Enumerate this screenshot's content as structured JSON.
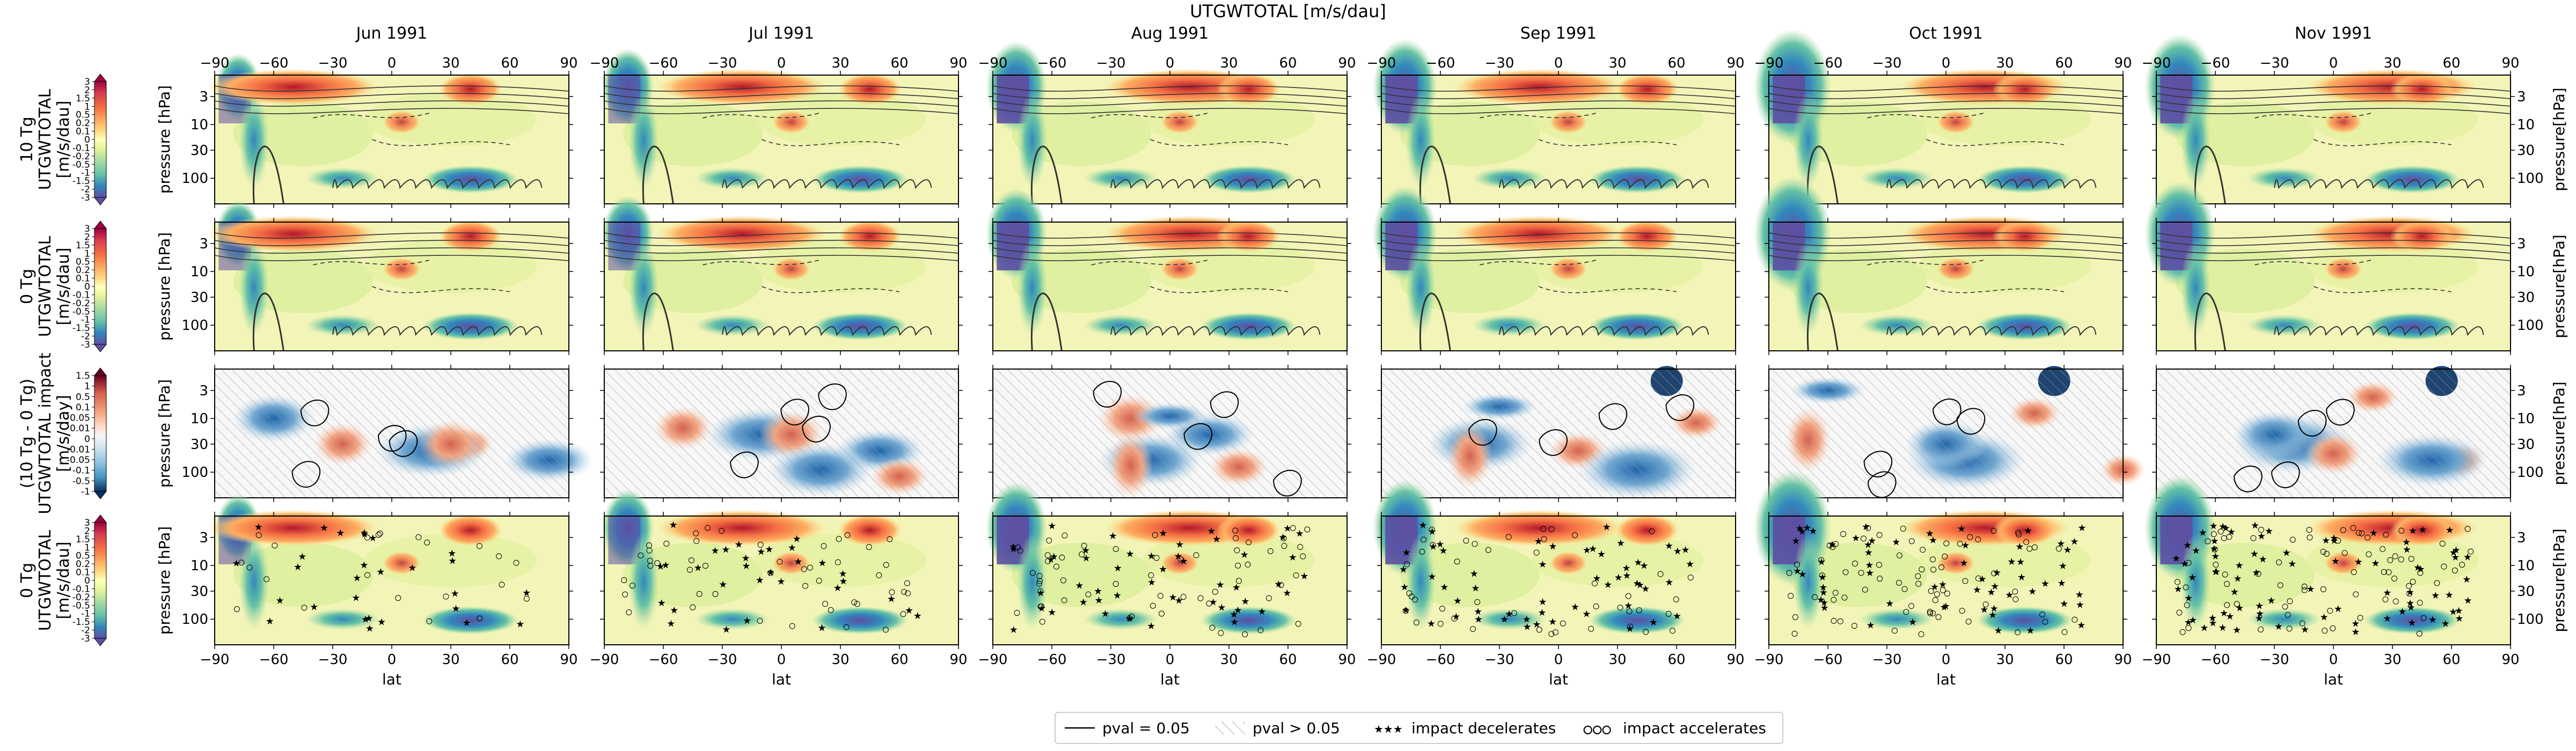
{
  "figure_title": "UTGWTOTAL [m/s/dau]",
  "months": [
    "Jun 1991",
    "Jul 1991",
    "Aug 1991",
    "Sep 1991",
    "Oct 1991",
    "Nov 1991"
  ],
  "rows": [
    {
      "name": "10tg",
      "label_lines": [
        "10 Tg",
        "UTGWTOTAL",
        "[m/s/dau]"
      ],
      "colorbar_ticks": [
        "3",
        "2",
        "1.5",
        "1",
        "0.5",
        "0.2",
        "0.1",
        "0",
        "-0.1",
        "-0.2",
        "-0.5",
        "-1",
        "-1.5",
        "-2",
        "-3"
      ]
    },
    {
      "name": "0tg",
      "label_lines": [
        "0 Tg",
        "UTGWTOTAL",
        "[m/s/dau]"
      ],
      "colorbar_ticks": [
        "3",
        "2",
        "1.5",
        "1",
        "0.5",
        "0.2",
        "0.1",
        "0",
        "-0.1",
        "-0.2",
        "-0.5",
        "-1",
        "-1.5",
        "-2",
        "-3"
      ]
    },
    {
      "name": "impact",
      "label_lines": [
        "(10 Tg - 0 Tg)",
        "UTGWTOTAL impact",
        "[m/s/day]"
      ],
      "colorbar_ticks": [
        "1.5",
        "1",
        "0.5",
        "0.1",
        "0.05",
        "0.01",
        "0",
        "-0.01",
        "-0.05",
        "-0.1",
        "-0.5",
        "-1"
      ]
    },
    {
      "name": "0tg-stipple",
      "label_lines": [
        "0 Tg",
        "UTGWTOTAL",
        "[m/s/dau]"
      ],
      "colorbar_ticks": [
        "3",
        "2",
        "1.5",
        "1",
        "0.5",
        "0.2",
        "0.1",
        "0",
        "-0.1",
        "-0.2",
        "-0.5",
        "-1",
        "-1.5",
        "-2",
        "-3"
      ]
    }
  ],
  "axes": {
    "x_ticks": [
      "−90",
      "−60",
      "−30",
      "0",
      "30",
      "60",
      "90"
    ],
    "x_values": [
      -90,
      -60,
      -30,
      0,
      30,
      60,
      90
    ],
    "y_ticks": [
      "3",
      "10",
      "30",
      "100"
    ],
    "y_values": [
      3,
      10,
      30,
      100
    ],
    "xlabel": "lat",
    "ylabel_left": "pressure [hPa]",
    "ylabel_right": "pressure[hPa]"
  },
  "legend": {
    "items": [
      "pval = 0.05",
      "pval > 0.05",
      "impact decelerates",
      "impact accelerates"
    ]
  },
  "chart_data": {
    "type": "heatmap",
    "title": "UTGWTOTAL [m/s/dau]",
    "xlabel": "lat",
    "ylabel": "pressure [hPa]",
    "xlim": [
      -90,
      90
    ],
    "ylim": [
      1,
      300
    ],
    "y_scale": "log",
    "y_inverted": true,
    "panels_per_row": 6,
    "columns": [
      "Jun 1991",
      "Jul 1991",
      "Aug 1991",
      "Sep 1991",
      "Oct 1991",
      "Nov 1991"
    ],
    "rows": [
      "10 Tg UTGWTOTAL",
      "0 Tg UTGWTOTAL",
      "(10 Tg - 0 Tg) UTGWTOTAL impact",
      "0 Tg UTGWTOTAL"
    ],
    "colorbar_levels_main": [
      -3,
      -2,
      -1.5,
      -1,
      -0.5,
      -0.2,
      -0.1,
      0,
      0.1,
      0.2,
      0.5,
      1,
      1.5,
      2,
      3
    ],
    "colorbar_levels_impact": [
      -1,
      -0.5,
      -0.1,
      -0.05,
      -0.01,
      0,
      0.01,
      0.05,
      0.1,
      0.5,
      1,
      1.5
    ],
    "features": [
      {
        "row": "all",
        "feature": "strong negative drag near 75S at 1–5 hPa",
        "lat": -75,
        "pressure": 3,
        "value": -3
      },
      {
        "row": "all",
        "feature": "negative drag near 40N at ~100 hPa",
        "lat": 40,
        "pressure": 100,
        "value": -1.5
      },
      {
        "row": "all",
        "feature": "negative drag near 25S at ~100 hPa",
        "lat": -25,
        "pressure": 100,
        "value": -0.5
      },
      {
        "row": "all",
        "feature": "positive drag aloft in subtropics",
        "lat": 10,
        "pressure": 2,
        "value": 2
      }
    ],
    "legend_placement": "bottom-center",
    "grid": false
  }
}
